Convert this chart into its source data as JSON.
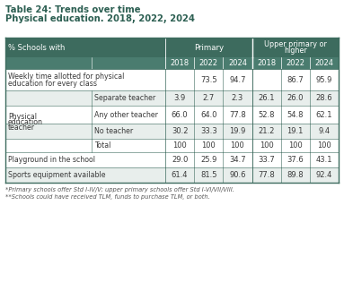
{
  "title_line1": "Table 24: Trends over time",
  "title_line2": "Physical education. 2018, 2022, 2024",
  "header_col": "% Schools with",
  "col_group1": "Primary",
  "col_group2": "Upper primary or\nhigher",
  "years": [
    "2018",
    "2022",
    "2024",
    "2018",
    "2022",
    "2024"
  ],
  "rows": [
    {
      "label1": "Weekly time allotted for physical\neducation for every class",
      "label2": "",
      "values": [
        "",
        "73.5",
        "94.7",
        "",
        "86.7",
        "95.9"
      ],
      "group": "white",
      "span": true
    },
    {
      "label1": "Physical\neducation\nteacher",
      "label2": "Separate teacher",
      "values": [
        "3.9",
        "2.7",
        "2.3",
        "26.1",
        "26.0",
        "28.6"
      ],
      "group": "light",
      "span": false
    },
    {
      "label1": "",
      "label2": "Any other teacher",
      "values": [
        "66.0",
        "64.0",
        "77.8",
        "52.8",
        "54.8",
        "62.1"
      ],
      "group": "white",
      "span": false
    },
    {
      "label1": "",
      "label2": "No teacher",
      "values": [
        "30.2",
        "33.3",
        "19.9",
        "21.2",
        "19.1",
        "9.4"
      ],
      "group": "light",
      "span": false
    },
    {
      "label1": "",
      "label2": "Total",
      "values": [
        "100",
        "100",
        "100",
        "100",
        "100",
        "100"
      ],
      "group": "white",
      "span": false
    },
    {
      "label1": "Playground in the school",
      "label2": "",
      "values": [
        "29.0",
        "25.9",
        "34.7",
        "33.7",
        "37.6",
        "43.1"
      ],
      "group": "white",
      "span": true
    },
    {
      "label1": "Sports equipment available",
      "label2": "",
      "values": [
        "61.4",
        "81.5",
        "90.6",
        "77.8",
        "89.8",
        "92.4"
      ],
      "group": "light",
      "span": true
    }
  ],
  "footer1": "*Primary schools offer Std I-IV/V; upper primary schools offer Std I-VI/VII/VIII.",
  "footer2": "**Schools could have received TLM, funds to purchase TLM, or both.",
  "header_bg": "#3d6b5e",
  "header_text": "#ffffff",
  "subheader_bg": "#4a7c6f",
  "light_row_bg": "#e8eeec",
  "white_row_bg": "#ffffff",
  "border_color": "#3d6b5e",
  "text_color_dark": "#3a3a3a",
  "title_color": "#2c5f52"
}
